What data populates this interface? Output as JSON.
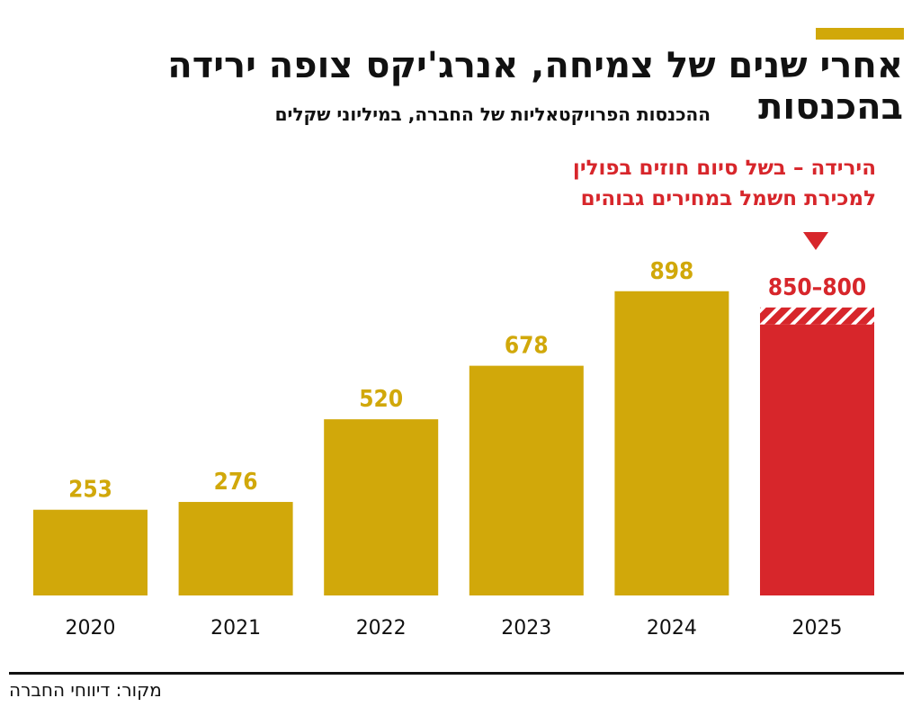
{
  "colors": {
    "accent": "#d1a80a",
    "highlight": "#d7262b",
    "text": "#111111"
  },
  "header": {
    "title": "אחרי שנים של צמיחה, אנרג'יקס צופה ירידה בהכנסות",
    "subtitle": "ההכנסות הפרויקטאליות של החברה, במיליוני שקלים"
  },
  "annotation": {
    "line1": "הירידה – בשל סיום חוזים בפולין",
    "line2": "למכירת חשמל במחירים גבוהים",
    "arrow_icon": "down-triangle-icon"
  },
  "footer": {
    "source": "מקור: דיווחי החברה"
  },
  "chart_data": {
    "type": "bar",
    "title": "אחרי שנים של צמיחה, אנרג'יקס צופה ירידה בהכנסות",
    "subtitle": "ההכנסות הפרויקטאליות של החברה, במיליוני שקלים",
    "categories": [
      "2020",
      "2021",
      "2022",
      "2023",
      "2024",
      "2025"
    ],
    "values": [
      253,
      276,
      520,
      678,
      898,
      800
    ],
    "value_labels": [
      "253",
      "276",
      "520",
      "678",
      "898",
      "850–800"
    ],
    "forecast_range": {
      "category": "2025",
      "low": 800,
      "high": 850
    },
    "ylim": [
      0,
      900
    ],
    "xlabel": "",
    "ylabel": "",
    "grid": false,
    "legend": "none"
  }
}
